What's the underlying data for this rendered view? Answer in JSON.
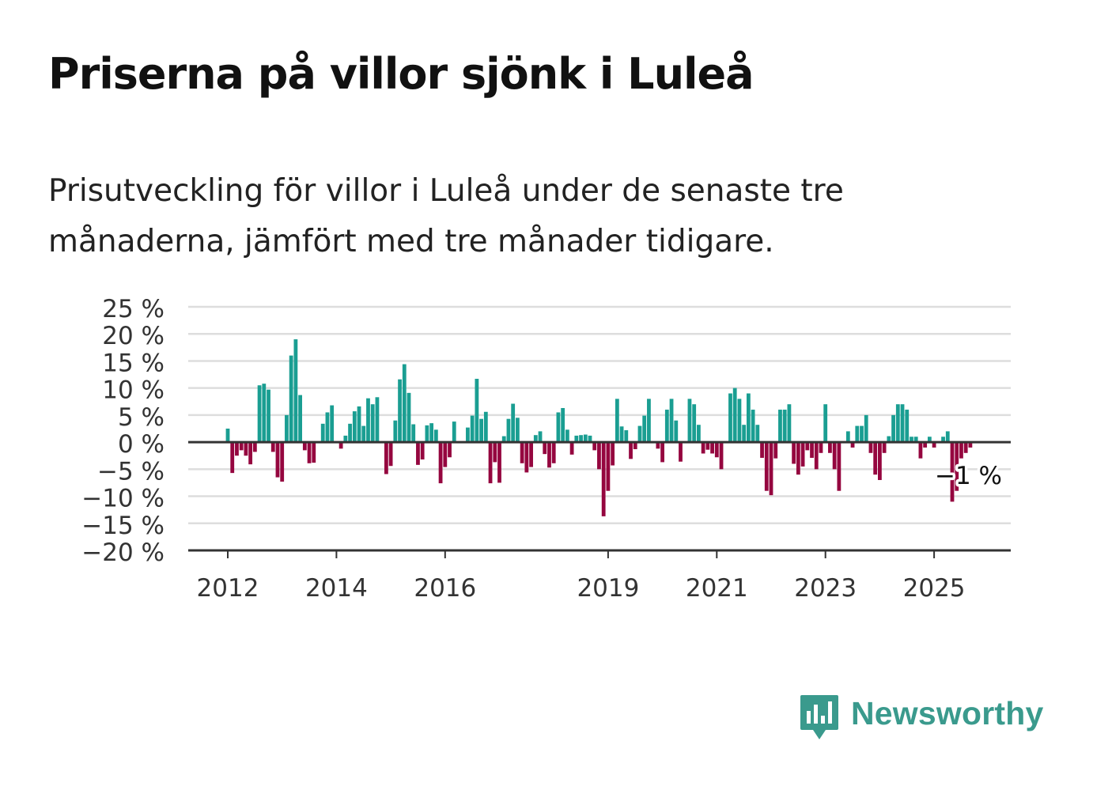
{
  "title": "Priserna på villor sjönk i Luleå",
  "subtitle": "Prisutveckling för villor i Luleå under de senaste tre månaderna, jämfört med tre månader tidigare.",
  "brand": {
    "name": "Newsworthy",
    "icon": "newsworthy-bar-chart-logo-icon"
  },
  "colors": {
    "positive": "#1a9e92",
    "negative": "#95063f",
    "grid": "#dddddd",
    "axis": "#333333",
    "text": "#333333",
    "brand": "#3a9a8d"
  },
  "chart_data": {
    "type": "bar",
    "title": "Priserna på villor sjönk i Luleå",
    "subtitle": "Prisutveckling för villor i Luleå under de senaste tre månaderna, jämfört med tre månader tidigare.",
    "xlabel": "",
    "ylabel": "",
    "unit": "%",
    "ylim": [
      -20,
      25
    ],
    "yticks": [
      25,
      20,
      15,
      10,
      5,
      0,
      -5,
      -10,
      -15,
      -20
    ],
    "ytick_labels": [
      "25 %",
      "20 %",
      "15 %",
      "10 %",
      "5 %",
      "0 %",
      "−5 %",
      "−10 %",
      "−15 %",
      "−20 %"
    ],
    "xticks": [
      "2012",
      "2014",
      "2016",
      "2019",
      "2021",
      "2023",
      "2025"
    ],
    "x_start": "2012-01",
    "x_end": "2025-08",
    "grid": true,
    "annotation": {
      "text": "−1 %",
      "value": -1,
      "target": "last"
    },
    "values": [
      2.5,
      -5.7,
      -2.5,
      -1.5,
      -2.5,
      -4.1,
      -1.8,
      10.5,
      10.8,
      9.7,
      -1.8,
      -6.5,
      -7.3,
      5.0,
      16.0,
      19.0,
      8.7,
      -1.5,
      -3.9,
      -3.8,
      0.0,
      3.4,
      5.5,
      6.8,
      0.0,
      -1.2,
      1.2,
      3.4,
      5.7,
      6.6,
      3.0,
      8.1,
      7.0,
      8.3,
      0.0,
      -5.9,
      -4.4,
      4.0,
      11.6,
      14.4,
      9.1,
      3.3,
      -4.2,
      -3.2,
      3.1,
      3.5,
      2.3,
      -7.6,
      -4.6,
      -2.8,
      3.8,
      0.0,
      0.0,
      2.7,
      4.9,
      11.7,
      4.3,
      5.6,
      -7.6,
      -3.7,
      -7.5,
      1.1,
      4.3,
      7.1,
      4.5,
      -3.9,
      -5.6,
      -4.6,
      1.3,
      2.0,
      -2.2,
      -4.7,
      -3.9,
      5.5,
      6.3,
      2.3,
      -2.3,
      1.2,
      1.3,
      1.4,
      1.2,
      -1.5,
      -5.0,
      -13.7,
      -9.0,
      -4.3,
      8.0,
      2.9,
      2.2,
      -3.1,
      -1.3,
      3.0,
      4.9,
      8.0,
      0.0,
      -1.2,
      -3.7,
      6.0,
      8.0,
      4.0,
      -3.6,
      0.0,
      8.0,
      7.0,
      3.2,
      -2.1,
      -1.4,
      -2.1,
      -2.8,
      -5.0,
      0.0,
      9.0,
      10.0,
      8.0,
      3.2,
      9.0,
      6.0,
      3.2,
      -2.9,
      -9.0,
      -9.8,
      -3.0,
      6.0,
      6.0,
      7.0,
      -4.0,
      -6.0,
      -4.5,
      -1.5,
      -2.9,
      -5.0,
      -2.0,
      7.0,
      -2.0,
      -5.0,
      -9.0,
      0.0,
      2.0,
      -1.0,
      3.0,
      3.0,
      5.0,
      -2.0,
      -6.0,
      -7.0,
      -2.0,
      1.1,
      5.0,
      7.0,
      7.0,
      6.0,
      1.0,
      1.0,
      -3.0,
      -1.0,
      1.0,
      -1.0,
      0.0,
      1.0,
      2.0,
      -11.0,
      -9.0,
      -3.0,
      -2.0,
      -1.0
    ]
  }
}
